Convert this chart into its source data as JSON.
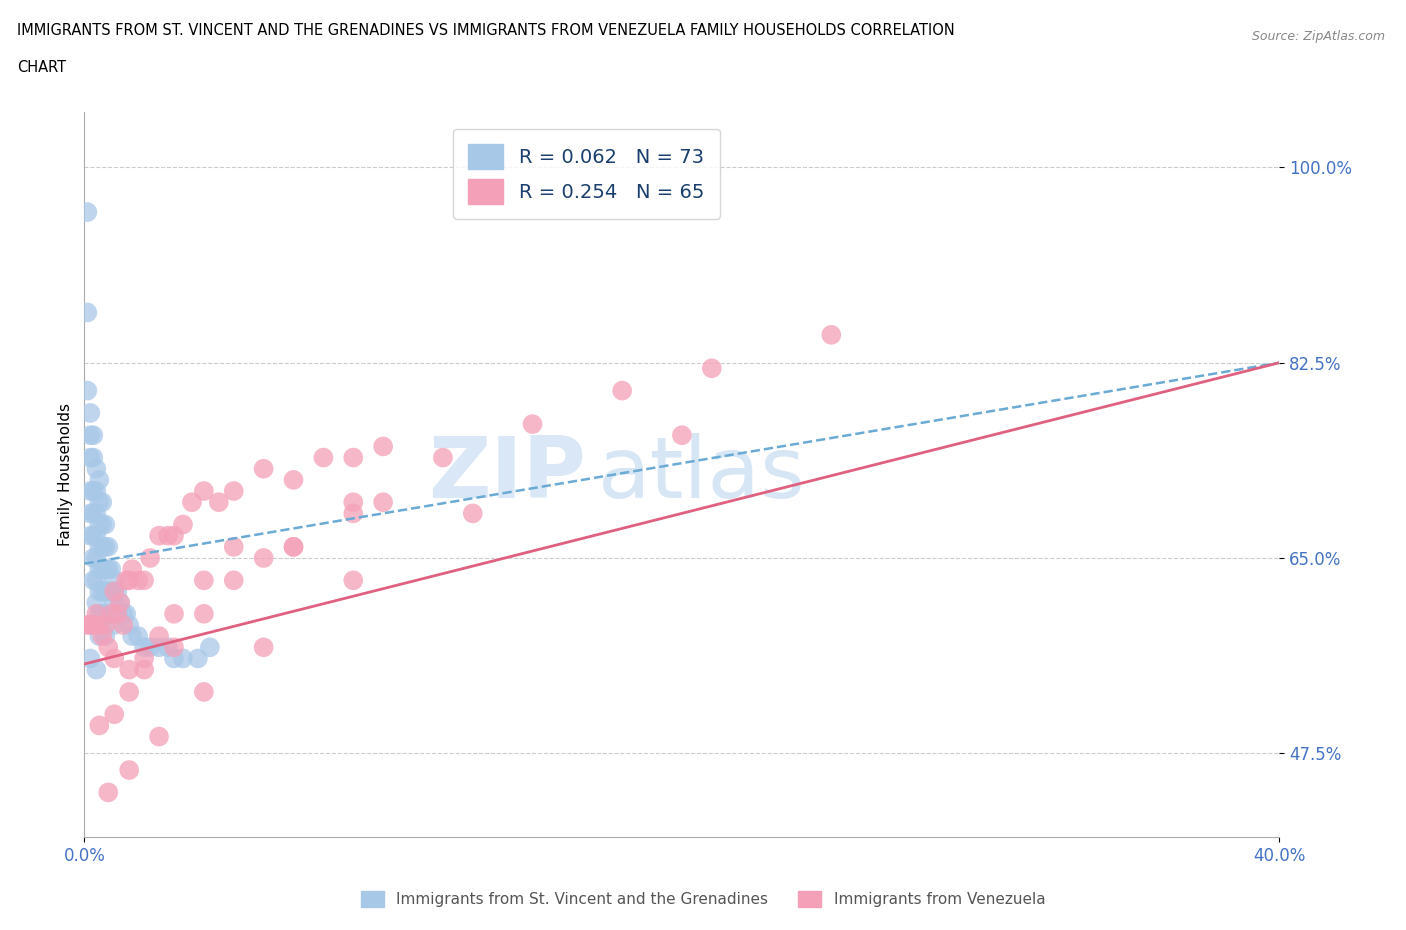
{
  "title_line1": "IMMIGRANTS FROM ST. VINCENT AND THE GRENADINES VS IMMIGRANTS FROM VENEZUELA FAMILY HOUSEHOLDS CORRELATION",
  "title_line2": "CHART",
  "source": "Source: ZipAtlas.com",
  "ylabel": "Family Households",
  "xmin": 0.0,
  "xmax": 0.4,
  "ymin": 0.4,
  "ymax": 1.05,
  "R_blue": 0.062,
  "N_blue": 73,
  "R_pink": 0.254,
  "N_pink": 65,
  "color_blue": "#a8c8e8",
  "color_pink": "#f4a0b8",
  "line_blue_color": "#6aaad4",
  "line_pink_color": "#e06080",
  "legend_label_blue": "Immigrants from St. Vincent and the Grenadines",
  "legend_label_pink": "Immigrants from Venezuela",
  "blue_x": [
    0.001,
    0.001,
    0.001,
    0.002,
    0.002,
    0.002,
    0.002,
    0.002,
    0.002,
    0.003,
    0.003,
    0.003,
    0.003,
    0.003,
    0.003,
    0.003,
    0.004,
    0.004,
    0.004,
    0.004,
    0.004,
    0.004,
    0.004,
    0.004,
    0.005,
    0.005,
    0.005,
    0.005,
    0.005,
    0.005,
    0.005,
    0.005,
    0.006,
    0.006,
    0.006,
    0.006,
    0.006,
    0.006,
    0.007,
    0.007,
    0.007,
    0.007,
    0.007,
    0.007,
    0.008,
    0.008,
    0.008,
    0.008,
    0.009,
    0.009,
    0.009,
    0.01,
    0.01,
    0.01,
    0.01,
    0.011,
    0.011,
    0.012,
    0.013,
    0.014,
    0.015,
    0.016,
    0.018,
    0.02,
    0.022,
    0.025,
    0.028,
    0.03,
    0.033,
    0.038,
    0.042,
    0.002,
    0.004
  ],
  "blue_y": [
    0.96,
    0.87,
    0.8,
    0.78,
    0.76,
    0.74,
    0.71,
    0.69,
    0.67,
    0.76,
    0.74,
    0.71,
    0.69,
    0.67,
    0.65,
    0.63,
    0.73,
    0.71,
    0.69,
    0.67,
    0.65,
    0.63,
    0.61,
    0.59,
    0.72,
    0.7,
    0.68,
    0.66,
    0.64,
    0.62,
    0.6,
    0.58,
    0.7,
    0.68,
    0.66,
    0.64,
    0.62,
    0.6,
    0.68,
    0.66,
    0.64,
    0.62,
    0.6,
    0.58,
    0.66,
    0.64,
    0.62,
    0.6,
    0.64,
    0.62,
    0.6,
    0.63,
    0.62,
    0.61,
    0.59,
    0.62,
    0.6,
    0.61,
    0.6,
    0.6,
    0.59,
    0.58,
    0.58,
    0.57,
    0.57,
    0.57,
    0.57,
    0.56,
    0.56,
    0.56,
    0.57,
    0.56,
    0.55
  ],
  "pink_x": [
    0.001,
    0.002,
    0.003,
    0.004,
    0.005,
    0.006,
    0.007,
    0.008,
    0.009,
    0.01,
    0.011,
    0.012,
    0.013,
    0.014,
    0.015,
    0.016,
    0.018,
    0.02,
    0.022,
    0.025,
    0.028,
    0.03,
    0.033,
    0.036,
    0.04,
    0.045,
    0.05,
    0.06,
    0.07,
    0.08,
    0.09,
    0.1,
    0.01,
    0.015,
    0.02,
    0.025,
    0.03,
    0.04,
    0.05,
    0.06,
    0.07,
    0.09,
    0.1,
    0.005,
    0.01,
    0.015,
    0.02,
    0.03,
    0.04,
    0.05,
    0.07,
    0.09,
    0.12,
    0.15,
    0.18,
    0.21,
    0.25,
    0.008,
    0.015,
    0.025,
    0.04,
    0.06,
    0.09,
    0.13,
    0.2
  ],
  "pink_y": [
    0.59,
    0.59,
    0.59,
    0.6,
    0.59,
    0.58,
    0.59,
    0.57,
    0.6,
    0.62,
    0.6,
    0.61,
    0.59,
    0.63,
    0.63,
    0.64,
    0.63,
    0.63,
    0.65,
    0.67,
    0.67,
    0.67,
    0.68,
    0.7,
    0.71,
    0.7,
    0.71,
    0.73,
    0.72,
    0.74,
    0.74,
    0.75,
    0.56,
    0.55,
    0.56,
    0.58,
    0.6,
    0.63,
    0.66,
    0.65,
    0.66,
    0.69,
    0.7,
    0.5,
    0.51,
    0.53,
    0.55,
    0.57,
    0.6,
    0.63,
    0.66,
    0.7,
    0.74,
    0.77,
    0.8,
    0.82,
    0.85,
    0.44,
    0.46,
    0.49,
    0.53,
    0.57,
    0.63,
    0.69,
    0.76
  ],
  "blue_trend_x0": 0.0,
  "blue_trend_x1": 0.4,
  "blue_trend_y0": 0.645,
  "blue_trend_y1": 0.825,
  "pink_trend_x0": 0.0,
  "pink_trend_x1": 0.4,
  "pink_trend_y0": 0.555,
  "pink_trend_y1": 0.825
}
